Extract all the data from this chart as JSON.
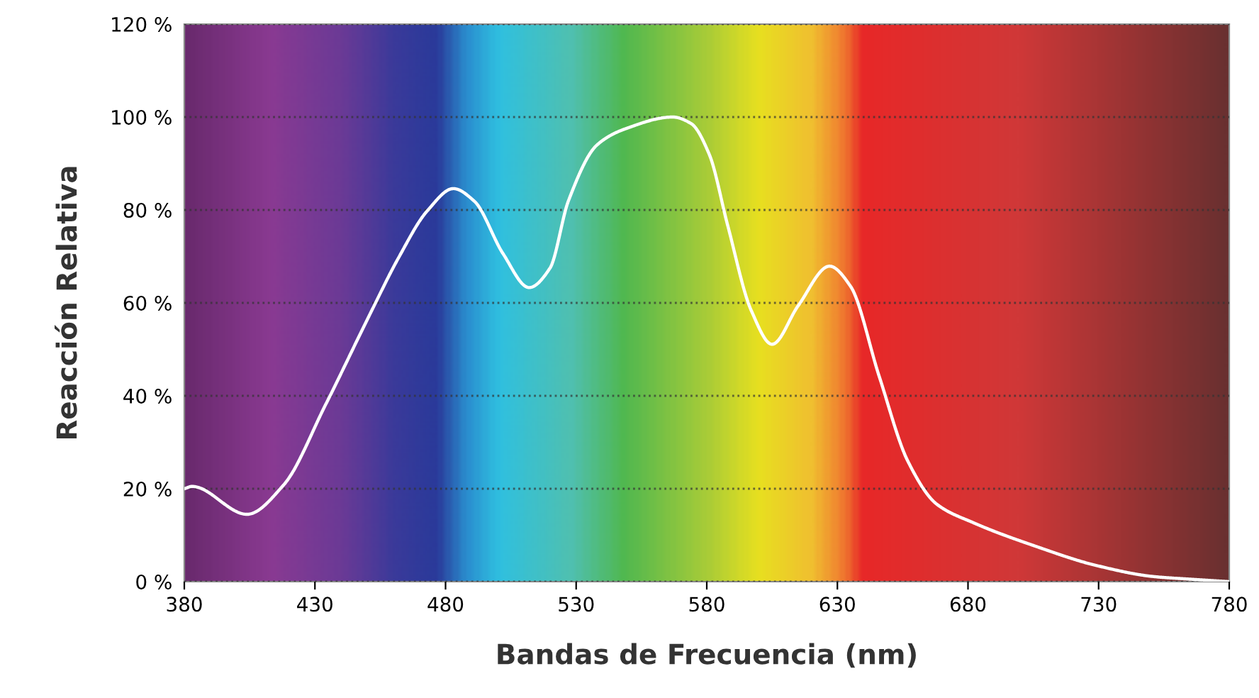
{
  "chart_data": {
    "type": "line",
    "xlabel": "Bandas de Frecuencia (nm)",
    "ylabel": "Reacción Relativa",
    "series": [
      {
        "color": "#ffffff",
        "x": [
          380,
          383,
          404,
          418,
          434,
          451,
          462,
          473,
          483,
          491,
          502,
          512,
          520,
          527,
          538,
          549,
          567,
          574,
          581,
          588,
          597,
          605,
          615,
          627,
          635,
          646,
          657,
          668,
          682,
          706,
          729,
          751,
          766,
          780
        ],
        "values": [
          20,
          20.5,
          14.5,
          20.8,
          38,
          57.5,
          69.7,
          79.8,
          84.6,
          81.9,
          70.6,
          63.3,
          67.5,
          81.9,
          94,
          97.5,
          100,
          98.6,
          91.9,
          76.7,
          58.4,
          51.1,
          59.4,
          67.9,
          63.6,
          44.2,
          25.9,
          16.7,
          12.7,
          7.6,
          3.5,
          1.1,
          0.5,
          0
        ]
      }
    ],
    "xlim": [
      380,
      780
    ],
    "xticks": [
      380,
      430,
      480,
      530,
      580,
      630,
      680,
      730,
      780
    ],
    "ylim": [
      0,
      120
    ],
    "yticks": [
      {
        "value": 0,
        "label": "0 %"
      },
      {
        "value": 20,
        "label": "20 %"
      },
      {
        "value": 40,
        "label": "40 %"
      },
      {
        "value": 60,
        "label": "60 %"
      },
      {
        "value": 80,
        "label": "80 %"
      },
      {
        "value": 100,
        "label": "100 %"
      },
      {
        "value": 120,
        "label": "120 %"
      }
    ],
    "grid": "y",
    "marker": "none",
    "line_style": "solid"
  }
}
